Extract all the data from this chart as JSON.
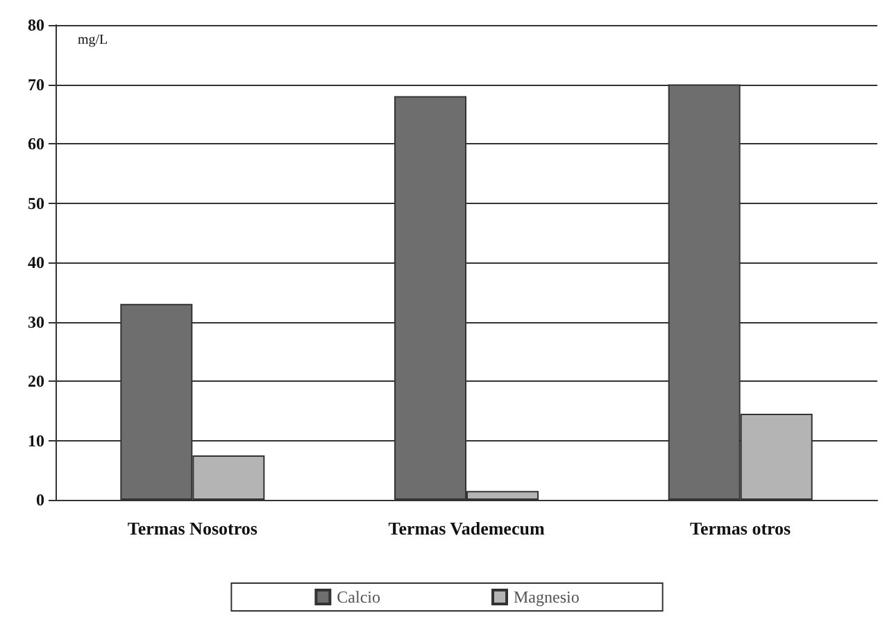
{
  "chart_data": {
    "type": "bar",
    "ylabel": "mg/L",
    "categories": [
      "Termas Nosotros",
      "Termas Vademecum",
      "Termas otros"
    ],
    "series": [
      {
        "name": "Calcio",
        "color": "#6e6e6e",
        "values": [
          33,
          68,
          70
        ]
      },
      {
        "name": "Magnesio",
        "color": "#b4b4b4",
        "values": [
          7.5,
          1.5,
          14.5
        ]
      }
    ],
    "ylim": [
      0,
      80
    ],
    "yticks": [
      0,
      10,
      20,
      30,
      40,
      50,
      60,
      70,
      80
    ],
    "grid": "y",
    "legend": "bottom"
  }
}
